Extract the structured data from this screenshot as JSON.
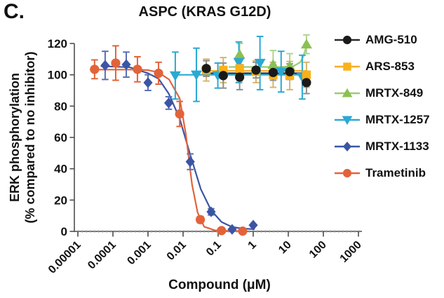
{
  "panel_label": "C.",
  "chart_data": {
    "type": "line",
    "title": "ASPC (KRAS G12D)",
    "xlabel": "Compound (μM)",
    "ylabel_line1": "ERK phosphorylation",
    "ylabel_line2": "(% compared to no inhibitor)",
    "x_scale": "log",
    "ylim": [
      0,
      120
    ],
    "grid": false,
    "zero_reference_line": "dotted-gray",
    "legend_position": "right",
    "axis_color": "#4d4d4d",
    "yticks": [
      0,
      20,
      40,
      60,
      80,
      100,
      120
    ],
    "xticks": [
      {
        "value": 1e-05,
        "label": "0.00001"
      },
      {
        "value": 0.0001,
        "label": "0.0001"
      },
      {
        "value": 0.001,
        "label": "0.001"
      },
      {
        "value": 0.01,
        "label": "0.01"
      },
      {
        "value": 0.1,
        "label": "0.1"
      },
      {
        "value": 1,
        "label": "1"
      },
      {
        "value": 10,
        "label": "10"
      },
      {
        "value": 100,
        "label": "100"
      },
      {
        "value": 1000,
        "label": "1000"
      }
    ],
    "series": [
      {
        "name": "AMG-510",
        "marker": "circle",
        "color": "#1a1a1a",
        "line_color": "#2a2a2a",
        "err_color": "#8f8f8f",
        "x": [
          0.046,
          0.14,
          0.41,
          1.2,
          3.7,
          11,
          33
        ],
        "y": [
          104,
          99.5,
          98.5,
          103,
          101.5,
          102,
          95
        ],
        "err": [
          5,
          8,
          8,
          5,
          5,
          5,
          7
        ],
        "fit": [
          [
            0.04,
            101
          ],
          [
            35,
            101
          ]
        ]
      },
      {
        "name": "ARS-853",
        "marker": "square",
        "color": "#FBB117",
        "line_color": "#F6AC24",
        "err_color": "#D5B66E",
        "x": [
          0.046,
          0.14,
          0.41,
          1.2,
          3.7,
          11,
          33
        ],
        "y": [
          103,
          103,
          104,
          102,
          100,
          99.5,
          100
        ],
        "err": [
          7,
          8,
          8,
          7,
          8,
          9,
          8
        ],
        "fit": [
          [
            0.04,
            102.5
          ],
          [
            35,
            102.5
          ]
        ]
      },
      {
        "name": "MRTX-849",
        "marker": "triangle-up",
        "color": "#8BC053",
        "line_color": "#9CCB72",
        "err_color": "#AED48D",
        "x": [
          0.41,
          3.7,
          11,
          33
        ],
        "y": [
          113,
          106.5,
          105.5,
          119.5
        ],
        "err": [
          7,
          9,
          8,
          6
        ],
        "fit": [
          [
            0.2,
            105
          ],
          [
            6,
            105
          ],
          [
            14,
            105.5
          ],
          [
            22,
            108
          ],
          [
            28,
            112.5
          ],
          [
            33,
            119
          ]
        ]
      },
      {
        "name": "MRTX-1257",
        "marker": "triangle-down",
        "color": "#2AA9D2",
        "line_color": "#2AA9D2",
        "err_color": "#2AA9D2",
        "x": [
          0.006,
          0.024,
          0.098,
          0.39,
          1.56,
          6.25,
          25
        ],
        "y": [
          99.5,
          100,
          99.5,
          108,
          107.5,
          102,
          98.5
        ],
        "err": [
          15,
          17,
          8,
          13,
          17,
          13,
          14
        ],
        "fit": [
          [
            0.005,
            100
          ],
          [
            28,
            100
          ]
        ]
      },
      {
        "name": "MRTX-1133",
        "marker": "diamond",
        "color": "#3B55A5",
        "line_color": "#3B55A5",
        "err_color": "#5A6FB5",
        "x": [
          6e-05,
          0.00024,
          0.001,
          0.0039,
          0.016,
          0.063,
          0.25,
          1
        ],
        "y": [
          106,
          106.5,
          95,
          82,
          44.5,
          12.5,
          1.3,
          4
        ],
        "err": [
          9,
          8,
          5,
          4,
          5,
          2,
          0,
          0
        ],
        "fit": [
          [
            4.5e-05,
            105.5
          ],
          [
            0.0003,
            104.8
          ],
          [
            0.001,
            101
          ],
          [
            0.002,
            97.5
          ],
          [
            0.0039,
            88
          ],
          [
            0.008,
            72
          ],
          [
            0.016,
            49
          ],
          [
            0.032,
            27
          ],
          [
            0.063,
            13.5
          ],
          [
            0.125,
            6
          ],
          [
            0.25,
            2.8
          ],
          [
            0.5,
            1.8
          ],
          [
            1.1,
            1.4
          ]
        ]
      },
      {
        "name": "Trametinib",
        "marker": "circle",
        "color": "#E2633A",
        "line_color": "#E2633A",
        "err_color": "#E2633A",
        "x": [
          3e-05,
          0.00012,
          0.0005,
          0.002,
          0.008,
          0.031,
          0.125,
          0.5
        ],
        "y": [
          103.5,
          107.5,
          103.5,
          101,
          75,
          7.5,
          0.5,
          0.2
        ],
        "err": [
          6,
          11,
          8,
          7,
          8,
          2,
          0,
          0
        ],
        "fit": [
          [
            2.2e-05,
            103.3
          ],
          [
            0.0005,
            103.3
          ],
          [
            0.001,
            103
          ],
          [
            0.002,
            101.5
          ],
          [
            0.004,
            97
          ],
          [
            0.008,
            85
          ],
          [
            0.012,
            62
          ],
          [
            0.018,
            30
          ],
          [
            0.026,
            12
          ],
          [
            0.04,
            3
          ],
          [
            0.08,
            0.7
          ],
          [
            0.2,
            0.3
          ],
          [
            0.55,
            0.2
          ]
        ]
      }
    ]
  }
}
